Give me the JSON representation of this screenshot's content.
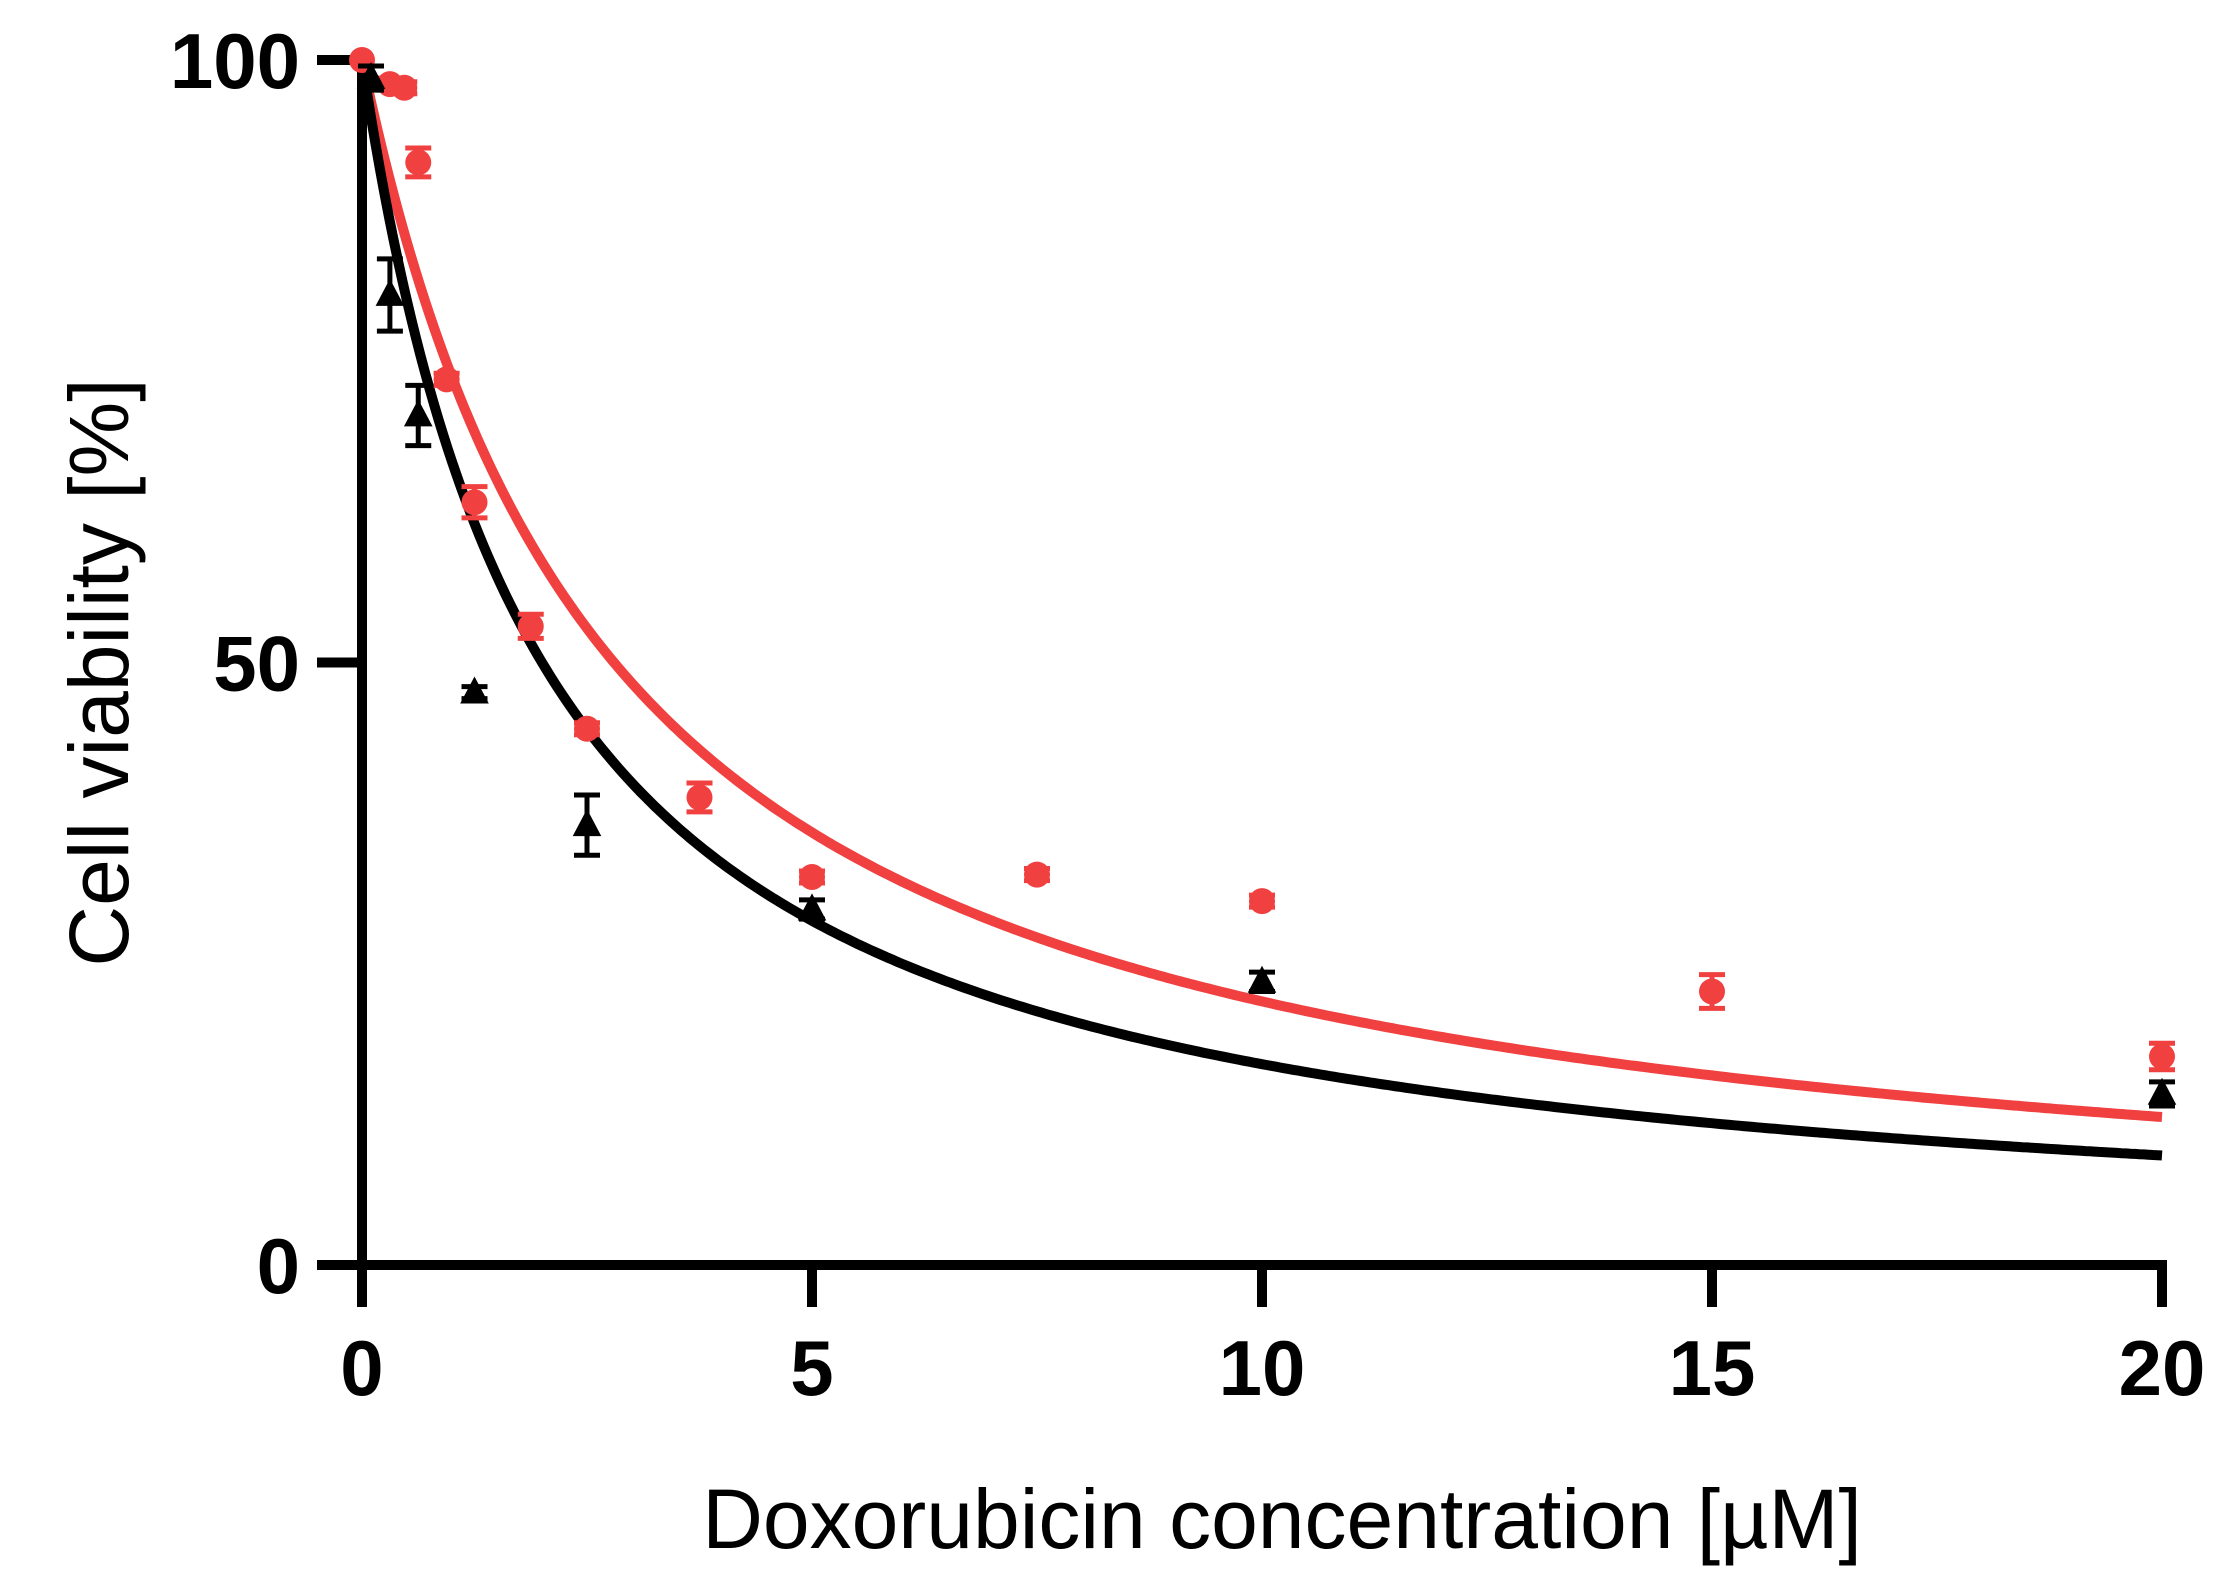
{
  "chart_data": {
    "type": "scatter",
    "xlabel": "Doxorubicin concentration [µM]",
    "ylabel": "Cell viability [%]",
    "xlim": [
      0,
      20
    ],
    "ylim": [
      0,
      100
    ],
    "x_ticks": [
      0,
      5,
      10,
      15,
      20
    ],
    "y_ticks": [
      0,
      50,
      100
    ],
    "x_tick_labels": [
      "0",
      "5",
      "10",
      "15",
      "20"
    ],
    "y_tick_labels": [
      "0",
      "50",
      "100"
    ],
    "grid": false,
    "legend": "none",
    "series": [
      {
        "color": "#f04040",
        "marker": "circle",
        "points": [
          {
            "x": 0,
            "y": 100,
            "err": 0
          },
          {
            "x": 0.31,
            "y": 98.0,
            "err": 0.5
          },
          {
            "x": 0.47,
            "y": 97.7,
            "err": 0.5
          },
          {
            "x": 0.625,
            "y": 91.5,
            "err": 1.2
          },
          {
            "x": 0.94,
            "y": 73.5,
            "err": 0.5
          },
          {
            "x": 1.25,
            "y": 63.3,
            "err": 1.3
          },
          {
            "x": 1.875,
            "y": 53.0,
            "err": 1.0
          },
          {
            "x": 2.5,
            "y": 44.5,
            "err": 0.5
          },
          {
            "x": 3.75,
            "y": 38.8,
            "err": 1.2
          },
          {
            "x": 5,
            "y": 32.2,
            "err": 0.5
          },
          {
            "x": 7.5,
            "y": 32.4,
            "err": 0.5
          },
          {
            "x": 10,
            "y": 30.2,
            "err": 0.5
          },
          {
            "x": 15,
            "y": 22.7,
            "err": 1.4
          },
          {
            "x": 20,
            "y": 17.3,
            "err": 1.1
          }
        ],
        "fit": {
          "type": "hill",
          "ic50": 2.8,
          "slope": 1.0
        }
      },
      {
        "color": "#000000",
        "marker": "triangle",
        "points": [
          {
            "x": 0.1,
            "y": 98.5,
            "err": 1.0
          },
          {
            "x": 0.31,
            "y": 80.5,
            "err": 3.0
          },
          {
            "x": 0.625,
            "y": 70.5,
            "err": 2.5
          },
          {
            "x": 1.25,
            "y": 47.5,
            "err": 0.5
          },
          {
            "x": 2.5,
            "y": 36.5,
            "err": 2.5
          },
          {
            "x": 5,
            "y": 29.5,
            "err": 0.8
          },
          {
            "x": 10,
            "y": 23.5,
            "err": 0.8
          },
          {
            "x": 20,
            "y": 14.2,
            "err": 1.0
          }
        ],
        "fit": {
          "type": "hill",
          "ic50": 2.0,
          "slope": 1.0
        }
      }
    ]
  }
}
